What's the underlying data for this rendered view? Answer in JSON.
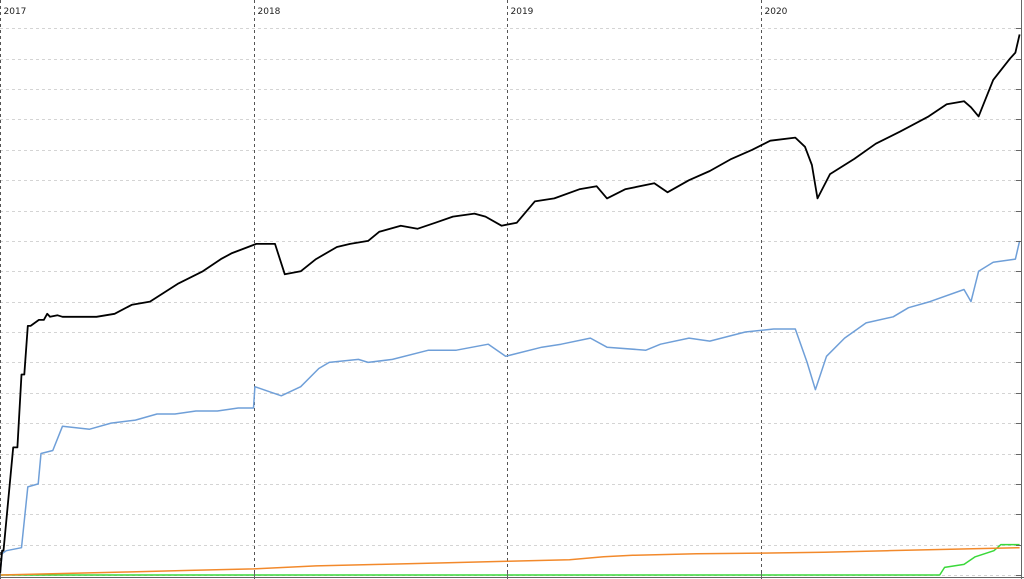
{
  "chart_data": {
    "type": "line",
    "title": "",
    "xlabel": "",
    "ylabel": "",
    "x_type": "date",
    "xlim": [
      "2017-01-01",
      "2021-01-10"
    ],
    "ylim": [
      0,
      18.8
    ],
    "y_tick_step": 1,
    "y_tick_labels_shown": false,
    "grid": {
      "horizontal": "dashed",
      "vertical": "dashed-at-year-start"
    },
    "x_tick_labels": [
      {
        "x": "2017-01-01",
        "label": "2017"
      },
      {
        "x": "2018-01-01",
        "label": "2018"
      },
      {
        "x": "2019-01-01",
        "label": "2019"
      },
      {
        "x": "2020-01-01",
        "label": "2020"
      }
    ],
    "series": [
      {
        "color": "#000000",
        "x": [
          "2017-01-01",
          "2017-01-04",
          "2017-01-06",
          "2017-01-20",
          "2017-01-26",
          "2017-02-01",
          "2017-02-05",
          "2017-02-10",
          "2017-02-14",
          "2017-02-26",
          "2017-03-05",
          "2017-03-10",
          "2017-03-14",
          "2017-03-25",
          "2017-04-01",
          "2017-04-25",
          "2017-05-20",
          "2017-06-15",
          "2017-07-10",
          "2017-08-05",
          "2017-09-15",
          "2017-10-20",
          "2017-11-15",
          "2017-12-01",
          "2018-01-05",
          "2018-02-01",
          "2018-02-15",
          "2018-03-10",
          "2018-04-01",
          "2018-05-01",
          "2018-05-20",
          "2018-06-15",
          "2018-07-01",
          "2018-08-01",
          "2018-08-25",
          "2018-09-20",
          "2018-10-15",
          "2018-11-15",
          "2018-12-01",
          "2018-12-24",
          "2019-01-15",
          "2019-02-10",
          "2019-03-10",
          "2019-04-15",
          "2019-05-10",
          "2019-05-25",
          "2019-06-20",
          "2019-08-01",
          "2019-08-20",
          "2019-09-20",
          "2019-10-20",
          "2019-11-20",
          "2019-12-20",
          "2020-01-15",
          "2020-02-20",
          "2020-03-05",
          "2020-03-15",
          "2020-03-23",
          "2020-04-10",
          "2020-05-15",
          "2020-06-15",
          "2020-07-20",
          "2020-08-30",
          "2020-09-25",
          "2020-10-20",
          "2020-10-30",
          "2020-11-10",
          "2020-12-01",
          "2020-12-25",
          "2021-01-02",
          "2021-01-08"
        ],
        "values": [
          0.0,
          0.8,
          0.8,
          4.2,
          4.2,
          6.6,
          6.6,
          8.2,
          8.2,
          8.4,
          8.4,
          8.6,
          8.5,
          8.55,
          8.5,
          8.5,
          8.5,
          8.6,
          8.9,
          9.0,
          9.6,
          10.0,
          10.4,
          10.6,
          10.9,
          10.9,
          9.9,
          10.0,
          10.4,
          10.8,
          10.9,
          11.0,
          11.3,
          11.5,
          11.4,
          11.6,
          11.8,
          11.9,
          11.8,
          11.5,
          11.6,
          12.3,
          12.4,
          12.7,
          12.8,
          12.4,
          12.7,
          12.9,
          12.6,
          13.0,
          13.3,
          13.7,
          14.0,
          14.3,
          14.4,
          14.1,
          13.5,
          12.4,
          13.2,
          13.7,
          14.2,
          14.6,
          15.1,
          15.5,
          15.6,
          15.4,
          15.1,
          16.3,
          17.0,
          17.2,
          17.8
        ]
      },
      {
        "color": "#6f9fd8",
        "x": [
          "2017-01-01",
          "2017-01-04",
          "2017-01-10",
          "2017-02-01",
          "2017-02-10",
          "2017-02-25",
          "2017-03-01",
          "2017-03-18",
          "2017-04-01",
          "2017-04-01",
          "2017-05-10",
          "2017-06-10",
          "2017-07-15",
          "2017-08-15",
          "2017-09-10",
          "2017-10-10",
          "2017-11-10",
          "2017-12-10",
          "2018-01-01",
          "2018-01-03",
          "2018-02-10",
          "2018-03-10",
          "2018-04-05",
          "2018-04-20",
          "2018-06-01",
          "2018-06-15",
          "2018-07-20",
          "2018-09-10",
          "2018-10-20",
          "2018-12-05",
          "2018-12-30",
          "2019-02-20",
          "2019-03-20",
          "2019-05-01",
          "2019-05-25",
          "2019-07-20",
          "2019-08-10",
          "2019-09-20",
          "2019-10-20",
          "2019-12-10",
          "2020-01-20",
          "2020-02-20",
          "2020-03-08",
          "2020-03-20",
          "2020-04-05",
          "2020-05-01",
          "2020-06-01",
          "2020-07-10",
          "2020-08-01",
          "2020-09-01",
          "2020-10-20",
          "2020-10-30",
          "2020-11-10",
          "2020-12-01",
          "2021-01-02",
          "2021-01-08"
        ],
        "values": [
          0.0,
          0.7,
          0.8,
          0.9,
          2.9,
          3.0,
          4.0,
          4.1,
          4.9,
          4.9,
          4.8,
          5.0,
          5.1,
          5.3,
          5.3,
          5.4,
          5.4,
          5.5,
          5.5,
          6.2,
          5.9,
          6.2,
          6.8,
          7.0,
          7.1,
          7.0,
          7.1,
          7.4,
          7.4,
          7.6,
          7.2,
          7.5,
          7.6,
          7.8,
          7.5,
          7.4,
          7.6,
          7.8,
          7.7,
          8.0,
          8.1,
          8.1,
          7.0,
          6.1,
          7.2,
          7.8,
          8.3,
          8.5,
          8.8,
          9.0,
          9.4,
          9.0,
          10.0,
          10.3,
          10.4,
          11.0
        ]
      },
      {
        "color": "#f2892b",
        "x": [
          "2017-01-01",
          "2017-04-01",
          "2017-07-01",
          "2017-10-01",
          "2018-01-01",
          "2018-04-01",
          "2018-07-01",
          "2018-10-01",
          "2019-01-01",
          "2019-04-01",
          "2019-05-20",
          "2019-07-01",
          "2019-10-01",
          "2020-01-01",
          "2020-04-01",
          "2020-07-01",
          "2020-10-01",
          "2021-01-08"
        ],
        "values": [
          0.0,
          0.05,
          0.1,
          0.15,
          0.2,
          0.3,
          0.35,
          0.4,
          0.45,
          0.5,
          0.6,
          0.65,
          0.7,
          0.72,
          0.75,
          0.8,
          0.85,
          0.9
        ]
      },
      {
        "color": "#3ad83a",
        "x": [
          "2017-01-01",
          "2020-09-15",
          "2020-09-22",
          "2020-10-20",
          "2020-11-05",
          "2020-12-02",
          "2020-12-12",
          "2021-01-08"
        ],
        "values": [
          0.0,
          0.0,
          0.25,
          0.35,
          0.6,
          0.8,
          1.0,
          1.0
        ]
      }
    ]
  }
}
